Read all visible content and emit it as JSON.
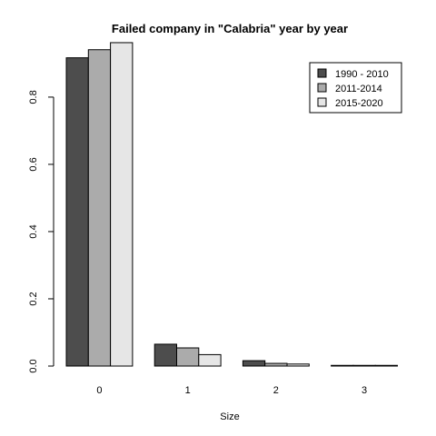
{
  "chart_data": {
    "type": "bar",
    "title": "Failed company in \"Calabria\" year by year",
    "xlabel": "Size",
    "ylabel": "",
    "categories": [
      "0",
      "1",
      "2",
      "3"
    ],
    "series": [
      {
        "name": "1990 - 2010",
        "color": "#4d4d4d",
        "values": [
          0.917,
          0.065,
          0.016,
          0.002
        ]
      },
      {
        "name": "2011-2014",
        "color": "#ababab",
        "values": [
          0.941,
          0.054,
          0.008,
          0.002
        ]
      },
      {
        "name": "2015-2020",
        "color": "#e6e6e6",
        "values": [
          0.962,
          0.034,
          0.006,
          0.002
        ]
      }
    ],
    "ylim": [
      0,
      0.97
    ],
    "yticks": [
      {
        "value": 0.0,
        "label": "0.0"
      },
      {
        "value": 0.2,
        "label": "0.2"
      },
      {
        "value": 0.4,
        "label": "0.4"
      },
      {
        "value": 0.6,
        "label": "0.6"
      },
      {
        "value": 0.8,
        "label": "0.8"
      }
    ],
    "legend_position": "top-right",
    "grid": false
  }
}
